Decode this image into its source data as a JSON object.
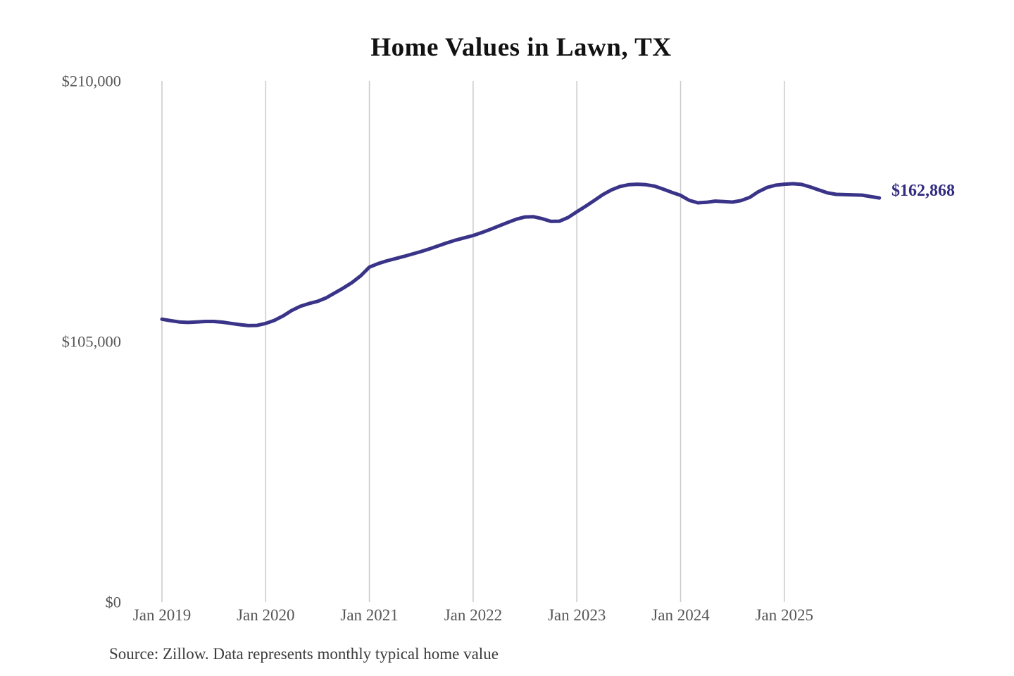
{
  "chart_data": {
    "type": "line",
    "title": "Home Values in Lawn, TX",
    "xlabel": "",
    "ylabel": "",
    "ylim": [
      0,
      210000
    ],
    "grid": "vertical-only",
    "legend": "none",
    "x_ticks": [
      "Jan 2019",
      "Jan 2020",
      "Jan 2021",
      "Jan 2022",
      "Jan 2023",
      "Jan 2024",
      "Jan 2025"
    ],
    "x_tick_month_indices": [
      0,
      12,
      24,
      36,
      48,
      60,
      72
    ],
    "y_ticks": [
      {
        "label": "$0",
        "value": 0
      },
      {
        "label": "$105,000",
        "value": 105000
      },
      {
        "label": "$210,000",
        "value": 210000
      }
    ],
    "start_month": "2019-01",
    "end_month": "2025-12",
    "series": [
      {
        "name": "Monthly typical home value",
        "values": [
          114000,
          113400,
          112900,
          112700,
          112900,
          113100,
          113100,
          112800,
          112300,
          111800,
          111400,
          111500,
          112300,
          113500,
          115300,
          117500,
          119200,
          120300,
          121200,
          122600,
          124600,
          126600,
          128800,
          131500,
          135000,
          136400,
          137500,
          138400,
          139300,
          140300,
          141300,
          142400,
          143600,
          144800,
          145900,
          146800,
          147700,
          148900,
          150200,
          151600,
          153000,
          154300,
          155200,
          155300,
          154500,
          153400,
          153500,
          155000,
          157300,
          159500,
          161800,
          164200,
          166100,
          167500,
          168200,
          168400,
          168200,
          167600,
          166400,
          165100,
          163900,
          161900,
          160900,
          161100,
          161600,
          161400,
          161200,
          161800,
          163100,
          165400,
          167100,
          168000,
          168400,
          168600,
          168300,
          167300,
          166100,
          164900,
          164300,
          164200,
          164100,
          164000,
          163400,
          162868
        ]
      }
    ],
    "end_label": "$162,868",
    "line_color": "#3a3489",
    "grid_color": "#cccccc",
    "axis_label_color": "#565656",
    "end_label_color": "#322d80"
  },
  "source_note": "Source: Zillow. Data represents monthly typical home value"
}
